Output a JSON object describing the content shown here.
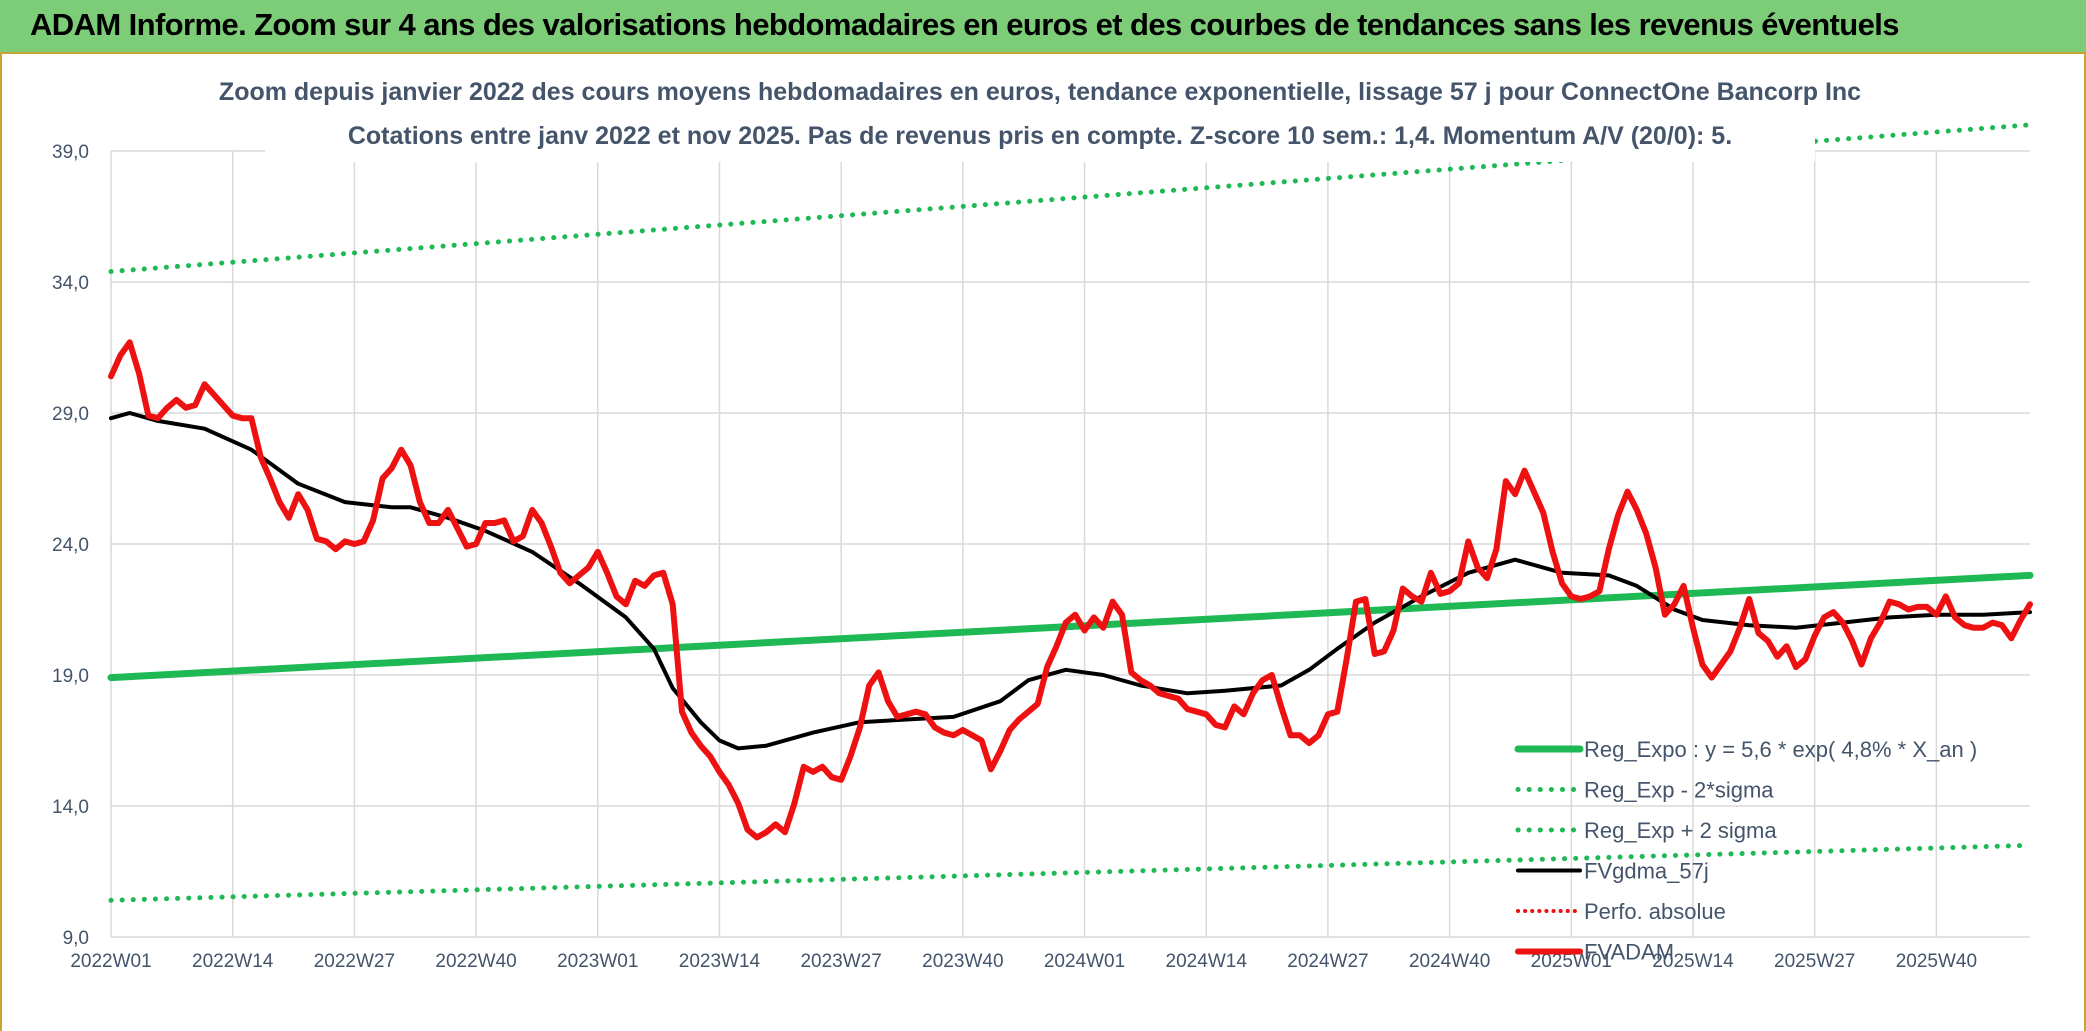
{
  "banner": {
    "title": "ADAM Informe. Zoom sur 4 ans des valorisations hebdomadaires en euros et des courbes de tendances sans les revenus éventuels"
  },
  "colors": {
    "banner_bg": "#7dcc78",
    "green": "#1eb954",
    "black": "#000000",
    "red": "#ee1111",
    "axis_text": "#44546a",
    "grid": "#d9d9d9"
  },
  "chart_data": {
    "type": "line",
    "title": "Zoom depuis janvier 2022 des cours moyens hebdomadaires en euros, tendance exponentielle, lissage 57 j pour ConnectOne Bancorp Inc",
    "subtitle": "Cotations entre janv 2022 et nov 2025. Pas de revenus pris en compte. Z-score 10 sem.: 1,4. Momentum A/V (20/0): 5.",
    "xlabel": "",
    "ylabel": "",
    "ylim": [
      9.0,
      39.0
    ],
    "yticks": [
      "9,0",
      "14,0",
      "19,0",
      "24,0",
      "29,0",
      "34,0",
      "39,0"
    ],
    "ytick_values": [
      9,
      14,
      19,
      24,
      29,
      34,
      39
    ],
    "xticks": [
      "2022W01",
      "2022W14",
      "2022W27",
      "2022W40",
      "2023W01",
      "2023W14",
      "2023W27",
      "2023W40",
      "2024W01",
      "2024W14",
      "2024W27",
      "2024W40",
      "2025W01",
      "2025W14",
      "2025W27",
      "2025W40"
    ],
    "xtick_positions": [
      0,
      13,
      26,
      39,
      52,
      65,
      78,
      91,
      104,
      117,
      130,
      143,
      156,
      169,
      182,
      195
    ],
    "x_count": 206,
    "grid": true,
    "legend_position": "bottom-right",
    "series": [
      {
        "name": "Reg_Expo : y = 5,6 * exp( 4,8% *  X_an )",
        "style": "solid-green",
        "points": [
          [
            0,
            18.9
          ],
          [
            205,
            22.8
          ]
        ]
      },
      {
        "name": "Reg_Exp - 2*sigma",
        "style": "dotted-green",
        "points": [
          [
            0,
            10.4
          ],
          [
            205,
            12.5
          ]
        ]
      },
      {
        "name": "Reg_Exp + 2 sigma",
        "style": "dotted-green",
        "points": [
          [
            0,
            34.4
          ],
          [
            205,
            40.0
          ]
        ]
      },
      {
        "name": "FVgdma_57j",
        "style": "solid-black",
        "points": [
          [
            0,
            28.8
          ],
          [
            2,
            29.0
          ],
          [
            5,
            28.7
          ],
          [
            10,
            28.4
          ],
          [
            15,
            27.6
          ],
          [
            20,
            26.3
          ],
          [
            25,
            25.6
          ],
          [
            30,
            25.4
          ],
          [
            32,
            25.4
          ],
          [
            36,
            25.0
          ],
          [
            40,
            24.5
          ],
          [
            45,
            23.7
          ],
          [
            50,
            22.5
          ],
          [
            55,
            21.2
          ],
          [
            58,
            20.0
          ],
          [
            60,
            18.5
          ],
          [
            63,
            17.2
          ],
          [
            65,
            16.5
          ],
          [
            67,
            16.2
          ],
          [
            70,
            16.3
          ],
          [
            75,
            16.8
          ],
          [
            80,
            17.2
          ],
          [
            85,
            17.3
          ],
          [
            90,
            17.4
          ],
          [
            95,
            18.0
          ],
          [
            98,
            18.8
          ],
          [
            102,
            19.2
          ],
          [
            106,
            19.0
          ],
          [
            110,
            18.6
          ],
          [
            115,
            18.3
          ],
          [
            119,
            18.4
          ],
          [
            125,
            18.6
          ],
          [
            128,
            19.2
          ],
          [
            131,
            20.0
          ],
          [
            135,
            21.0
          ],
          [
            140,
            22.0
          ],
          [
            145,
            22.9
          ],
          [
            150,
            23.4
          ],
          [
            155,
            22.9
          ],
          [
            160,
            22.8
          ],
          [
            163,
            22.4
          ],
          [
            167,
            21.5
          ],
          [
            170,
            21.1
          ],
          [
            175,
            20.9
          ],
          [
            180,
            20.8
          ],
          [
            185,
            21.0
          ],
          [
            190,
            21.2
          ],
          [
            195,
            21.3
          ],
          [
            200,
            21.3
          ],
          [
            205,
            21.4
          ]
        ]
      },
      {
        "name": "FVADAM",
        "style": "solid-red",
        "points": [
          [
            0,
            30.4
          ],
          [
            1,
            31.2
          ],
          [
            2,
            31.7
          ],
          [
            3,
            30.5
          ],
          [
            4,
            28.9
          ],
          [
            5,
            28.8
          ],
          [
            6,
            29.2
          ],
          [
            7,
            29.5
          ],
          [
            8,
            29.2
          ],
          [
            9,
            29.3
          ],
          [
            10,
            30.1
          ],
          [
            11,
            29.7
          ],
          [
            12,
            29.3
          ],
          [
            13,
            28.9
          ],
          [
            14,
            28.8
          ],
          [
            15,
            28.8
          ],
          [
            16,
            27.3
          ],
          [
            17,
            26.5
          ],
          [
            18,
            25.6
          ],
          [
            19,
            25.0
          ],
          [
            20,
            25.9
          ],
          [
            21,
            25.3
          ],
          [
            22,
            24.2
          ],
          [
            23,
            24.1
          ],
          [
            24,
            23.8
          ],
          [
            25,
            24.1
          ],
          [
            26,
            24.0
          ],
          [
            27,
            24.1
          ],
          [
            28,
            24.9
          ],
          [
            29,
            26.5
          ],
          [
            30,
            26.9
          ],
          [
            31,
            27.6
          ],
          [
            32,
            27.0
          ],
          [
            33,
            25.6
          ],
          [
            34,
            24.8
          ],
          [
            35,
            24.8
          ],
          [
            36,
            25.3
          ],
          [
            37,
            24.6
          ],
          [
            38,
            23.9
          ],
          [
            39,
            24.0
          ],
          [
            40,
            24.8
          ],
          [
            41,
            24.8
          ],
          [
            42,
            24.9
          ],
          [
            43,
            24.1
          ],
          [
            44,
            24.3
          ],
          [
            45,
            25.3
          ],
          [
            46,
            24.8
          ],
          [
            47,
            23.9
          ],
          [
            48,
            22.9
          ],
          [
            49,
            22.5
          ],
          [
            50,
            22.8
          ],
          [
            51,
            23.1
          ],
          [
            52,
            23.7
          ],
          [
            53,
            22.9
          ],
          [
            54,
            22.0
          ],
          [
            55,
            21.7
          ],
          [
            56,
            22.6
          ],
          [
            57,
            22.4
          ],
          [
            58,
            22.8
          ],
          [
            59,
            22.9
          ],
          [
            60,
            21.7
          ],
          [
            61,
            17.6
          ],
          [
            62,
            16.8
          ],
          [
            63,
            16.3
          ],
          [
            64,
            15.9
          ],
          [
            65,
            15.3
          ],
          [
            66,
            14.8
          ],
          [
            67,
            14.1
          ],
          [
            68,
            13.1
          ],
          [
            69,
            12.8
          ],
          [
            70,
            13.0
          ],
          [
            71,
            13.3
          ],
          [
            72,
            13.0
          ],
          [
            73,
            14.1
          ],
          [
            74,
            15.5
          ],
          [
            75,
            15.3
          ],
          [
            76,
            15.5
          ],
          [
            77,
            15.1
          ],
          [
            78,
            15.0
          ],
          [
            79,
            15.9
          ],
          [
            80,
            17.0
          ],
          [
            81,
            18.6
          ],
          [
            82,
            19.1
          ],
          [
            83,
            18.0
          ],
          [
            84,
            17.4
          ],
          [
            85,
            17.5
          ],
          [
            86,
            17.6
          ],
          [
            87,
            17.5
          ],
          [
            88,
            17.0
          ],
          [
            89,
            16.8
          ],
          [
            90,
            16.7
          ],
          [
            91,
            16.9
          ],
          [
            92,
            16.7
          ],
          [
            93,
            16.5
          ],
          [
            94,
            15.4
          ],
          [
            95,
            16.1
          ],
          [
            96,
            16.9
          ],
          [
            97,
            17.3
          ],
          [
            98,
            17.6
          ],
          [
            99,
            17.9
          ],
          [
            100,
            19.3
          ],
          [
            101,
            20.1
          ],
          [
            102,
            21.0
          ],
          [
            103,
            21.3
          ],
          [
            104,
            20.7
          ],
          [
            105,
            21.2
          ],
          [
            106,
            20.8
          ],
          [
            107,
            21.8
          ],
          [
            108,
            21.3
          ],
          [
            109,
            19.1
          ],
          [
            110,
            18.8
          ],
          [
            111,
            18.6
          ],
          [
            112,
            18.3
          ],
          [
            113,
            18.2
          ],
          [
            114,
            18.1
          ],
          [
            115,
            17.7
          ],
          [
            116,
            17.6
          ],
          [
            117,
            17.5
          ],
          [
            118,
            17.1
          ],
          [
            119,
            17.0
          ],
          [
            120,
            17.8
          ],
          [
            121,
            17.5
          ],
          [
            122,
            18.3
          ],
          [
            123,
            18.8
          ],
          [
            124,
            19.0
          ],
          [
            125,
            17.8
          ],
          [
            126,
            16.7
          ],
          [
            127,
            16.7
          ],
          [
            128,
            16.4
          ],
          [
            129,
            16.7
          ],
          [
            130,
            17.5
          ],
          [
            131,
            17.6
          ],
          [
            132,
            19.6
          ],
          [
            133,
            21.8
          ],
          [
            134,
            21.9
          ],
          [
            135,
            19.8
          ],
          [
            136,
            19.9
          ],
          [
            137,
            20.7
          ],
          [
            138,
            22.3
          ],
          [
            139,
            22.0
          ],
          [
            140,
            21.8
          ],
          [
            141,
            22.9
          ],
          [
            142,
            22.1
          ],
          [
            143,
            22.2
          ],
          [
            144,
            22.5
          ],
          [
            145,
            24.1
          ],
          [
            146,
            23.1
          ],
          [
            147,
            22.7
          ],
          [
            148,
            23.8
          ],
          [
            149,
            26.4
          ],
          [
            150,
            25.9
          ],
          [
            151,
            26.8
          ],
          [
            152,
            26.0
          ],
          [
            153,
            25.2
          ],
          [
            154,
            23.7
          ],
          [
            155,
            22.5
          ],
          [
            156,
            22.0
          ],
          [
            157,
            21.9
          ],
          [
            158,
            22.0
          ],
          [
            159,
            22.2
          ],
          [
            160,
            23.8
          ],
          [
            161,
            25.1
          ],
          [
            162,
            26.0
          ],
          [
            163,
            25.3
          ],
          [
            164,
            24.4
          ],
          [
            165,
            23.1
          ],
          [
            166,
            21.3
          ],
          [
            167,
            21.7
          ],
          [
            168,
            22.4
          ],
          [
            169,
            20.8
          ],
          [
            170,
            19.4
          ],
          [
            171,
            18.9
          ],
          [
            172,
            19.4
          ],
          [
            173,
            19.9
          ],
          [
            174,
            20.8
          ],
          [
            175,
            21.9
          ],
          [
            176,
            20.6
          ],
          [
            177,
            20.3
          ],
          [
            178,
            19.7
          ],
          [
            179,
            20.1
          ],
          [
            180,
            19.3
          ],
          [
            181,
            19.6
          ],
          [
            182,
            20.5
          ],
          [
            183,
            21.2
          ],
          [
            184,
            21.4
          ],
          [
            185,
            21.0
          ],
          [
            186,
            20.3
          ],
          [
            187,
            19.4
          ],
          [
            188,
            20.4
          ],
          [
            189,
            21.0
          ],
          [
            190,
            21.8
          ],
          [
            191,
            21.7
          ],
          [
            192,
            21.5
          ],
          [
            193,
            21.6
          ],
          [
            194,
            21.6
          ],
          [
            195,
            21.3
          ],
          [
            196,
            22.0
          ],
          [
            197,
            21.2
          ],
          [
            198,
            20.9
          ],
          [
            199,
            20.8
          ],
          [
            200,
            20.8
          ],
          [
            201,
            21.0
          ],
          [
            202,
            20.9
          ],
          [
            203,
            20.4
          ],
          [
            204,
            21.1
          ],
          [
            205,
            21.7
          ]
        ]
      }
    ],
    "legend": [
      {
        "label": "Reg_Expo : y = 5,6 * exp( 4,8% *  X_an )",
        "style": "solid-green"
      },
      {
        "label": "Reg_Exp - 2*sigma",
        "style": "dotted-green"
      },
      {
        "label": "Reg_Exp + 2 sigma",
        "style": "dotted-green"
      },
      {
        "label": "FVgdma_57j",
        "style": "solid-black"
      },
      {
        "label": "Perfo. absolue",
        "style": "dotted-red"
      },
      {
        "label": "FVADAM",
        "style": "solid-red"
      }
    ]
  }
}
